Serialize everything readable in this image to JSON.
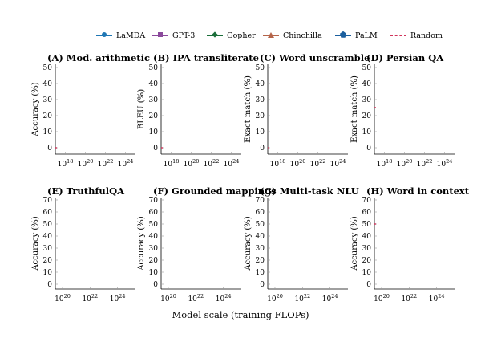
{
  "legend": [
    {
      "name": "LaMDA",
      "color": "#1f77b4",
      "marker": "circle"
    },
    {
      "name": "GPT-3",
      "color": "#8b4a9c",
      "marker": "square"
    },
    {
      "name": "Gopher",
      "color": "#1b6e3a",
      "marker": "diamond"
    },
    {
      "name": "Chinchilla",
      "color": "#b5654a",
      "marker": "triangle"
    },
    {
      "name": "PaLM",
      "color": "#1b5f9e",
      "marker": "pentagon"
    },
    {
      "name": "Random",
      "color": "#d1345b",
      "marker": "dashed"
    }
  ],
  "xlabel_shared": "Model scale (training FLOPs)",
  "chart_data": [
    {
      "type": "line",
      "title": "(A) Mod. arithmetic",
      "ylabel": "Accuracy (%)",
      "xscale": "log",
      "xlim": [
        1e+17,
        1e+25
      ],
      "xticks": [
        "10^18",
        "10^20",
        "10^22",
        "10^24"
      ],
      "ylim": [
        -4,
        52
      ],
      "yticks": [
        0,
        10,
        20,
        30,
        40,
        50
      ],
      "random_baseline": 0,
      "series": []
    },
    {
      "type": "line",
      "title": "(B) IPA transliterate",
      "ylabel": "BLEU (%)",
      "xscale": "log",
      "xlim": [
        1e+17,
        1e+25
      ],
      "xticks": [
        "10^18",
        "10^20",
        "10^22",
        "10^24"
      ],
      "ylim": [
        -4,
        52
      ],
      "yticks": [
        0,
        10,
        20,
        30,
        40,
        50
      ],
      "random_baseline": 0,
      "series": []
    },
    {
      "type": "line",
      "title": "(C) Word unscramble",
      "ylabel": "Exact match (%)",
      "xscale": "log",
      "xlim": [
        1e+17,
        1e+25
      ],
      "xticks": [
        "10^18",
        "10^20",
        "10^22",
        "10^24"
      ],
      "ylim": [
        -4,
        52
      ],
      "yticks": [
        0,
        10,
        20,
        30,
        40,
        50
      ],
      "random_baseline": 0,
      "series": []
    },
    {
      "type": "line",
      "title": "(D) Persian QA",
      "ylabel": "Exact match (%)",
      "xscale": "log",
      "xlim": [
        1e+17,
        1e+25
      ],
      "xticks": [
        "10^18",
        "10^20",
        "10^22",
        "10^24"
      ],
      "ylim": [
        -4,
        52
      ],
      "yticks": [
        0,
        10,
        20,
        30,
        40,
        50
      ],
      "random_baseline": 25,
      "series": []
    },
    {
      "type": "line",
      "title": "(E) TruthfulQA",
      "ylabel": "Accuracy (%)",
      "xscale": "log",
      "xlim": [
        3e+19,
        2e+25
      ],
      "xticks": [
        "10^20",
        "10^22",
        "10^24"
      ],
      "ylim": [
        -4,
        72
      ],
      "yticks": [
        0,
        10,
        20,
        30,
        40,
        50,
        60,
        70
      ],
      "random_baseline": null,
      "series": []
    },
    {
      "type": "line",
      "title": "(F) Grounded mappings",
      "ylabel": "Accuracy (%)",
      "xscale": "log",
      "xlim": [
        3e+19,
        2e+25
      ],
      "xticks": [
        "10^20",
        "10^22",
        "10^24"
      ],
      "ylim": [
        -4,
        72
      ],
      "yticks": [
        0,
        10,
        20,
        30,
        40,
        50,
        60,
        70
      ],
      "random_baseline": null,
      "series": []
    },
    {
      "type": "line",
      "title": "(G) Multi-task NLU",
      "ylabel": "Accuracy (%)",
      "xscale": "log",
      "xlim": [
        3e+19,
        2e+25
      ],
      "xticks": [
        "10^20",
        "10^22",
        "10^24"
      ],
      "ylim": [
        -4,
        72
      ],
      "yticks": [
        0,
        10,
        20,
        30,
        40,
        50,
        60,
        70
      ],
      "random_baseline": null,
      "series": []
    },
    {
      "type": "line",
      "title": "(H) Word in context",
      "ylabel": "Accuracy (%)",
      "xscale": "log",
      "xlim": [
        3e+19,
        2e+25
      ],
      "xticks": [
        "10^20",
        "10^22",
        "10^24"
      ],
      "ylim": [
        -4,
        72
      ],
      "yticks": [
        0,
        10,
        20,
        30,
        40,
        50,
        60,
        70
      ],
      "random_baseline": 50,
      "series": []
    }
  ]
}
